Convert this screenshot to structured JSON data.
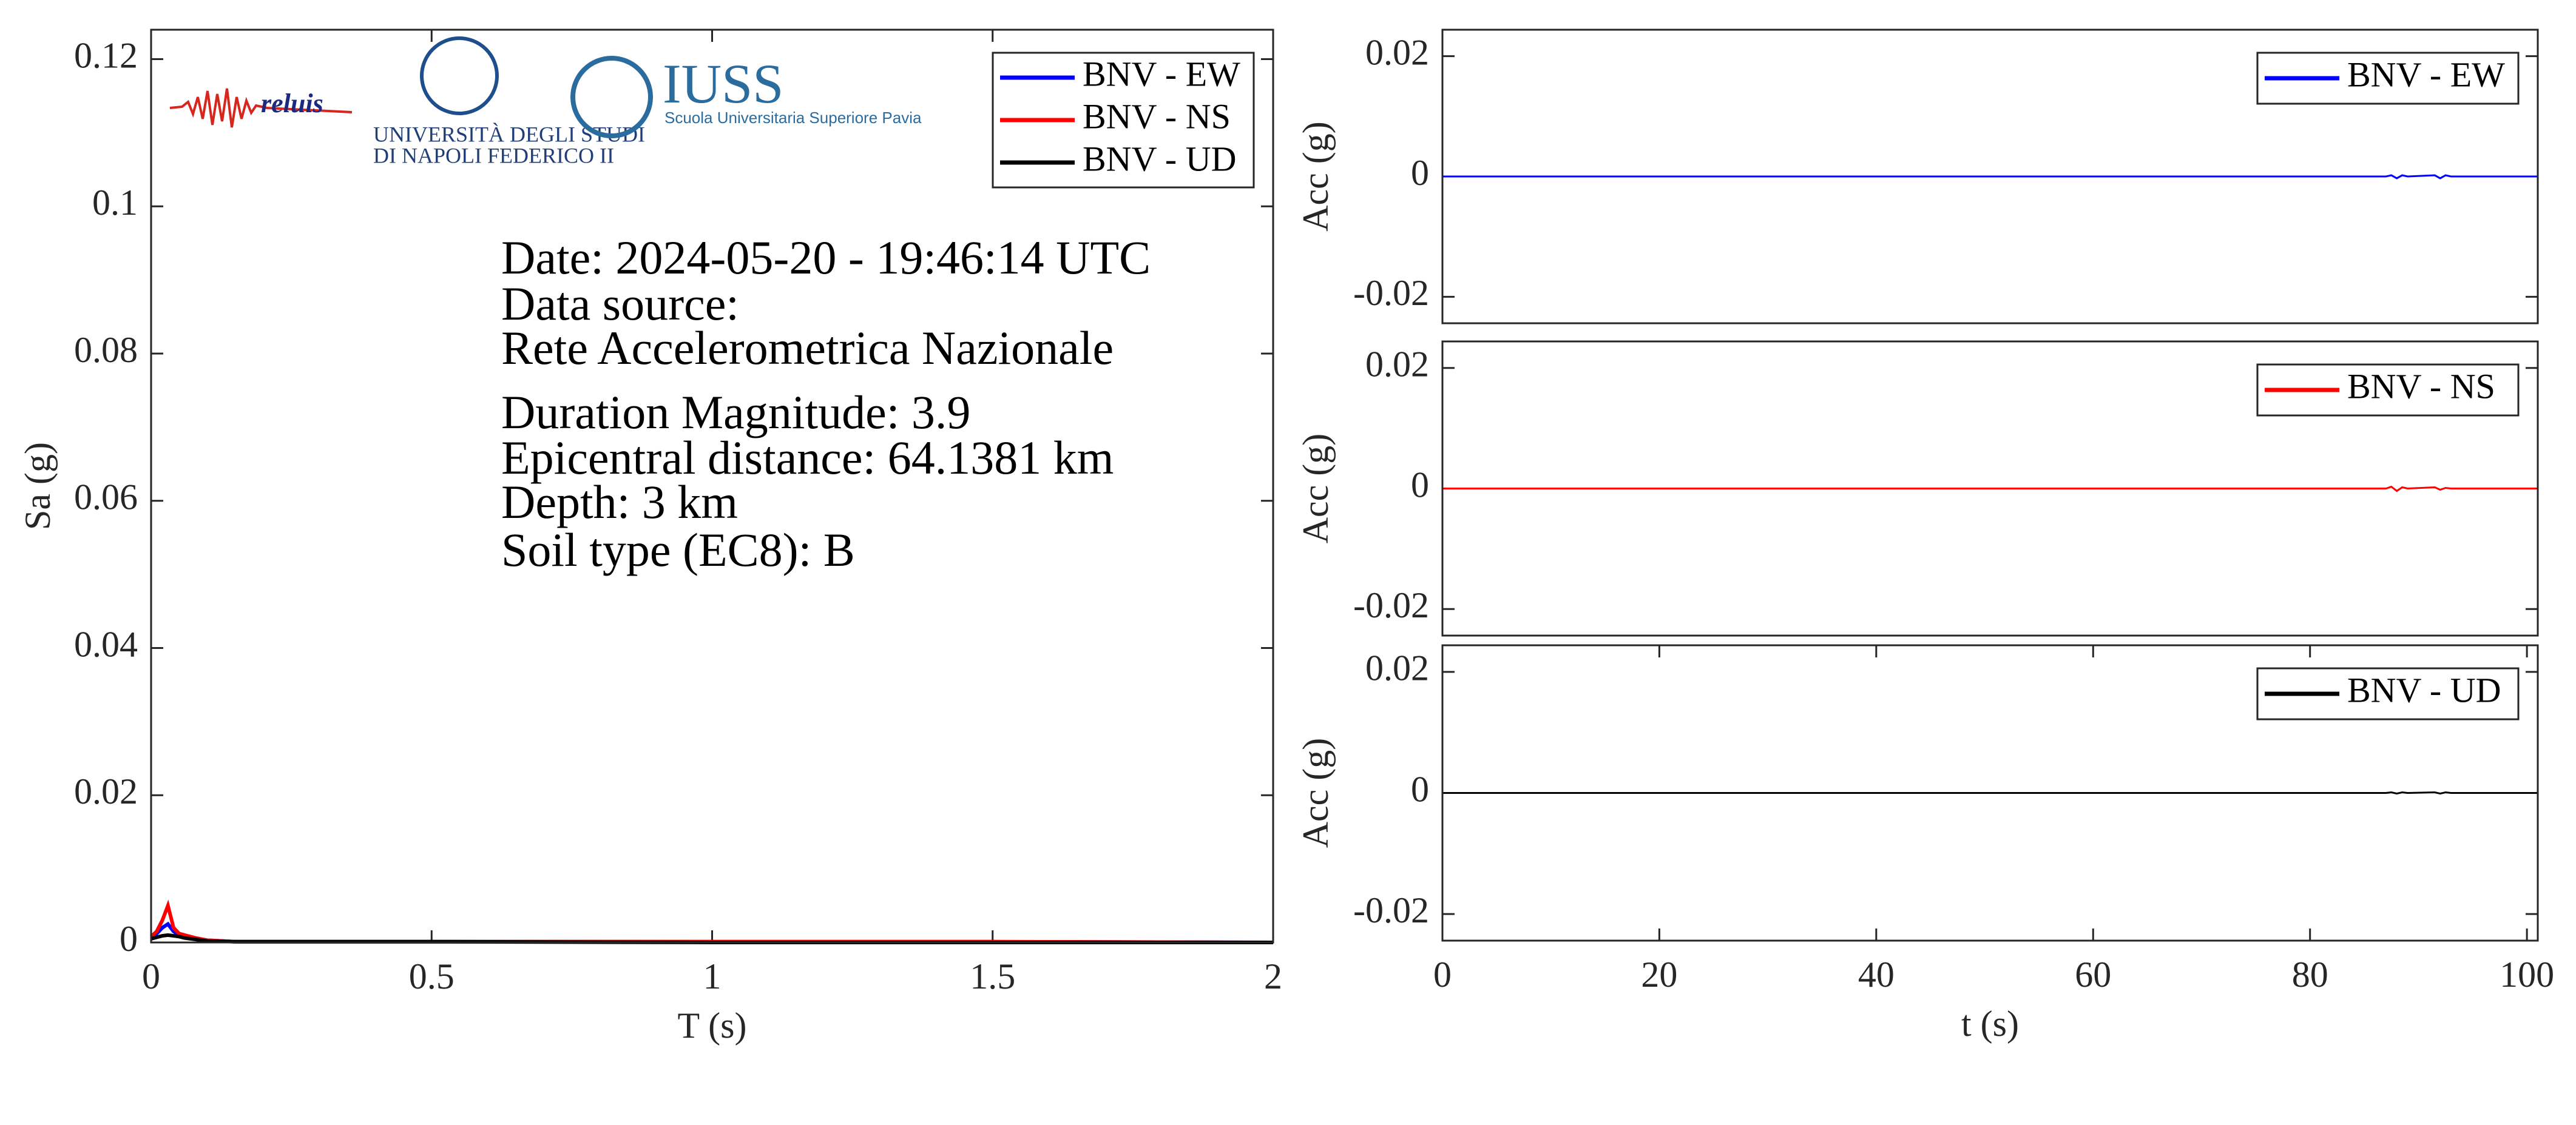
{
  "chart_data": [
    {
      "type": "line",
      "xlabel": "T (s)",
      "ylabel": "Sa (g)",
      "x": [
        0,
        0.01,
        0.02,
        0.03,
        0.04,
        0.05,
        0.06,
        0.08,
        0.1,
        0.15,
        0.2,
        0.5,
        1,
        1.5,
        2
      ],
      "series": [
        {
          "name": "BNV - EW",
          "color": "#0000ff",
          "values": [
            0.0008,
            0.0012,
            0.002,
            0.0025,
            0.0015,
            0.001,
            0.0008,
            0.0005,
            0.0003,
            0.0001,
            0.0001,
            0.0001,
            0.0001,
            0.0001,
            0
          ]
        },
        {
          "name": "BNV - NS",
          "color": "#ff0000",
          "values": [
            0.0008,
            0.0015,
            0.003,
            0.005,
            0.002,
            0.0012,
            0.001,
            0.0006,
            0.0003,
            0.0001,
            0.0001,
            0.0001,
            0.0001,
            0.0001,
            0
          ]
        },
        {
          "name": "BNV - UD",
          "color": "#000000",
          "values": [
            0.0005,
            0.0007,
            0.0009,
            0.001,
            0.0009,
            0.0008,
            0.0006,
            0.0004,
            0.0002,
            0.0001,
            0.0001,
            0.0001,
            0,
            0,
            0
          ]
        }
      ],
      "xlim": [
        0,
        2
      ],
      "xticks": [
        0,
        0.5,
        1,
        1.5,
        2
      ],
      "ylim": [
        0,
        0.124
      ],
      "yticks": [
        0,
        0.02,
        0.04,
        0.06,
        0.08,
        0.1,
        0.12
      ],
      "legend": "upper right",
      "annotations": [
        "Date: 2024-05-20 - 19:46:14 UTC",
        "Data source:",
        "Rete Accelerometrica Nazionale",
        "Duration Magnitude: 3.9",
        "Epicentral distance: 64.1381 km",
        "Depth: 3 km",
        "Soil type (EC8): B"
      ],
      "logo_texts": [
        "reluis",
        "UNIVERSITÀ DEGLI STUDI",
        "DI NAPOLI FEDERICO II",
        "IUSS",
        "Scuola Universitaria Superiore Pavia"
      ]
    },
    {
      "type": "line",
      "ylabel": "Acc (g)",
      "x": [
        0,
        87,
        87.5,
        88,
        88.5,
        89,
        91.5,
        92,
        92.5,
        93,
        101
      ],
      "series": [
        {
          "name": "BNV - EW",
          "color": "#0000ff",
          "values": [
            0,
            0,
            0.0002,
            -0.0003,
            0.0002,
            0,
            0.0002,
            -0.0003,
            0.0002,
            0,
            0
          ]
        }
      ],
      "xlim": [
        0,
        101
      ],
      "ylim": [
        -0.0244,
        0.0244
      ],
      "yticks": [
        -0.02,
        0,
        0.02
      ],
      "legend": "upper right"
    },
    {
      "type": "line",
      "ylabel": "Acc (g)",
      "x": [
        0,
        87,
        87.5,
        88,
        88.5,
        89,
        91.5,
        92,
        92.5,
        93,
        101
      ],
      "series": [
        {
          "name": "BNV - NS",
          "color": "#ff0000",
          "values": [
            0,
            0,
            0.0003,
            -0.0004,
            0.0002,
            0,
            0.0002,
            -0.0002,
            0.0001,
            0,
            0
          ]
        }
      ],
      "xlim": [
        0,
        101
      ],
      "ylim": [
        -0.0244,
        0.0244
      ],
      "yticks": [
        -0.02,
        0,
        0.02
      ],
      "legend": "upper right"
    },
    {
      "type": "line",
      "xlabel": "t (s)",
      "ylabel": "Acc (g)",
      "x": [
        0,
        87,
        87.5,
        88,
        88.5,
        89,
        91.5,
        92,
        92.5,
        93,
        101
      ],
      "series": [
        {
          "name": "BNV - UD",
          "color": "#000000",
          "values": [
            0,
            0,
            0.0001,
            -0.0001,
            0.0001,
            0,
            0.0001,
            -0.0001,
            0.0001,
            0,
            0
          ]
        }
      ],
      "xlim": [
        0,
        101
      ],
      "xticks": [
        0,
        20,
        40,
        60,
        80,
        100
      ],
      "ylim": [
        -0.0244,
        0.0244
      ],
      "yticks": [
        -0.02,
        0,
        0.02
      ],
      "legend": "upper right"
    }
  ]
}
